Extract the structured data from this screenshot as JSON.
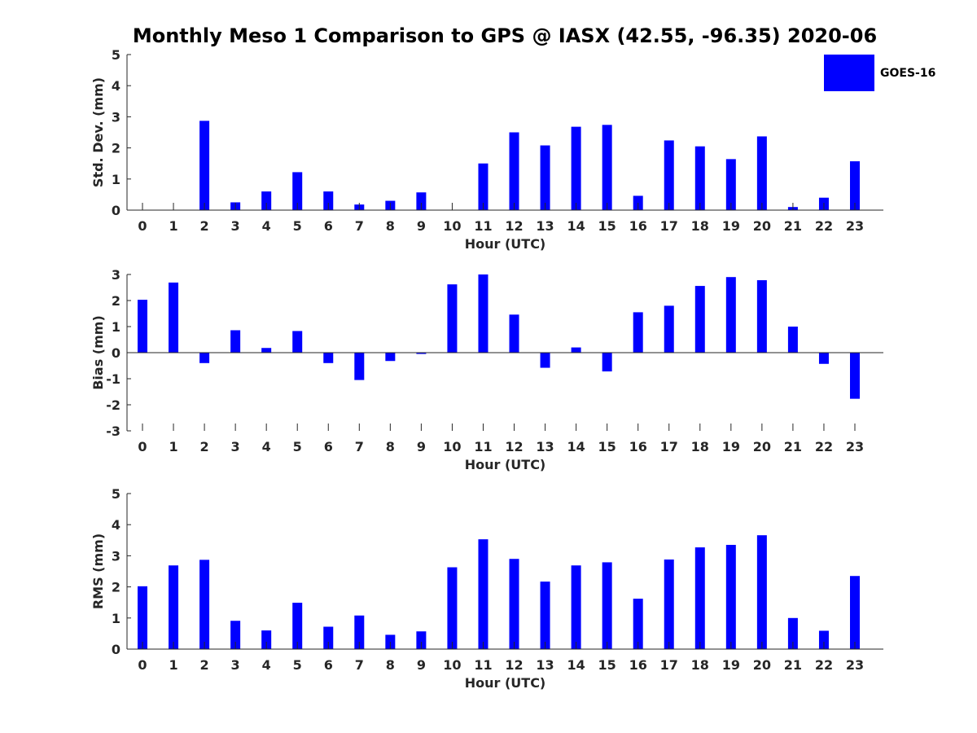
{
  "title": "Monthly Meso 1 Comparison to GPS @ IASX (42.55, -96.35) 2020-06",
  "legend": {
    "label": "GOES-16",
    "color": "#0000ff"
  },
  "chart_data": [
    {
      "type": "bar",
      "name": "std-dev",
      "categories": [
        "0",
        "1",
        "2",
        "3",
        "4",
        "5",
        "6",
        "7",
        "8",
        "9",
        "10",
        "11",
        "12",
        "13",
        "14",
        "15",
        "16",
        "17",
        "18",
        "19",
        "20",
        "21",
        "22",
        "23"
      ],
      "series": [
        {
          "name": "GOES-16",
          "values": [
            0,
            0,
            2.87,
            0.25,
            0.6,
            1.22,
            0.6,
            0.18,
            0.3,
            0.57,
            0,
            1.5,
            2.5,
            2.08,
            2.68,
            2.74,
            0.46,
            2.24,
            2.05,
            1.64,
            2.37,
            0.1,
            0.4,
            1.57
          ]
        }
      ],
      "xlabel": "Hour (UTC)",
      "ylabel": "Std. Dev. (mm)",
      "ylim": [
        0,
        5
      ],
      "yticks": [
        0,
        1,
        2,
        3,
        4,
        5
      ],
      "yticklabels": [
        "0",
        "1",
        "2",
        "3",
        "4",
        "5"
      ]
    },
    {
      "type": "bar",
      "name": "bias",
      "categories": [
        "0",
        "1",
        "2",
        "3",
        "4",
        "5",
        "6",
        "7",
        "8",
        "9",
        "10",
        "11",
        "12",
        "13",
        "14",
        "15",
        "16",
        "17",
        "18",
        "19",
        "20",
        "21",
        "22",
        "23"
      ],
      "series": [
        {
          "name": "GOES-16",
          "values": [
            2.03,
            2.69,
            -0.4,
            0.86,
            0.18,
            0.83,
            -0.4,
            -1.05,
            -0.32,
            -0.05,
            2.62,
            3.0,
            1.46,
            -0.58,
            0.2,
            -0.72,
            1.55,
            1.8,
            2.56,
            2.9,
            2.78,
            1.0,
            -0.43,
            -1.77
          ]
        }
      ],
      "xlabel": "Hour (UTC)",
      "ylabel": "Bias (mm)",
      "ylim": [
        -3,
        3
      ],
      "yticks": [
        -3,
        -2,
        -1,
        0,
        1,
        2,
        3
      ],
      "yticklabels": [
        "-3",
        "-2",
        "-1",
        "0",
        "1",
        "2",
        "3"
      ]
    },
    {
      "type": "bar",
      "name": "rms",
      "categories": [
        "0",
        "1",
        "2",
        "3",
        "4",
        "5",
        "6",
        "7",
        "8",
        "9",
        "10",
        "11",
        "12",
        "13",
        "14",
        "15",
        "16",
        "17",
        "18",
        "19",
        "20",
        "21",
        "22",
        "23"
      ],
      "series": [
        {
          "name": "GOES-16",
          "values": [
            2.02,
            2.69,
            2.87,
            0.91,
            0.6,
            1.49,
            0.72,
            1.08,
            0.46,
            0.57,
            2.63,
            3.53,
            2.9,
            2.17,
            2.69,
            2.79,
            1.62,
            2.88,
            3.27,
            3.35,
            3.66,
            1.0,
            0.59,
            2.35
          ]
        }
      ],
      "xlabel": "Hour (UTC)",
      "ylabel": "RMS (mm)",
      "ylim": [
        0,
        5
      ],
      "yticks": [
        0,
        1,
        2,
        3,
        4,
        5
      ],
      "yticklabels": [
        "0",
        "1",
        "2",
        "3",
        "4",
        "5"
      ]
    }
  ]
}
